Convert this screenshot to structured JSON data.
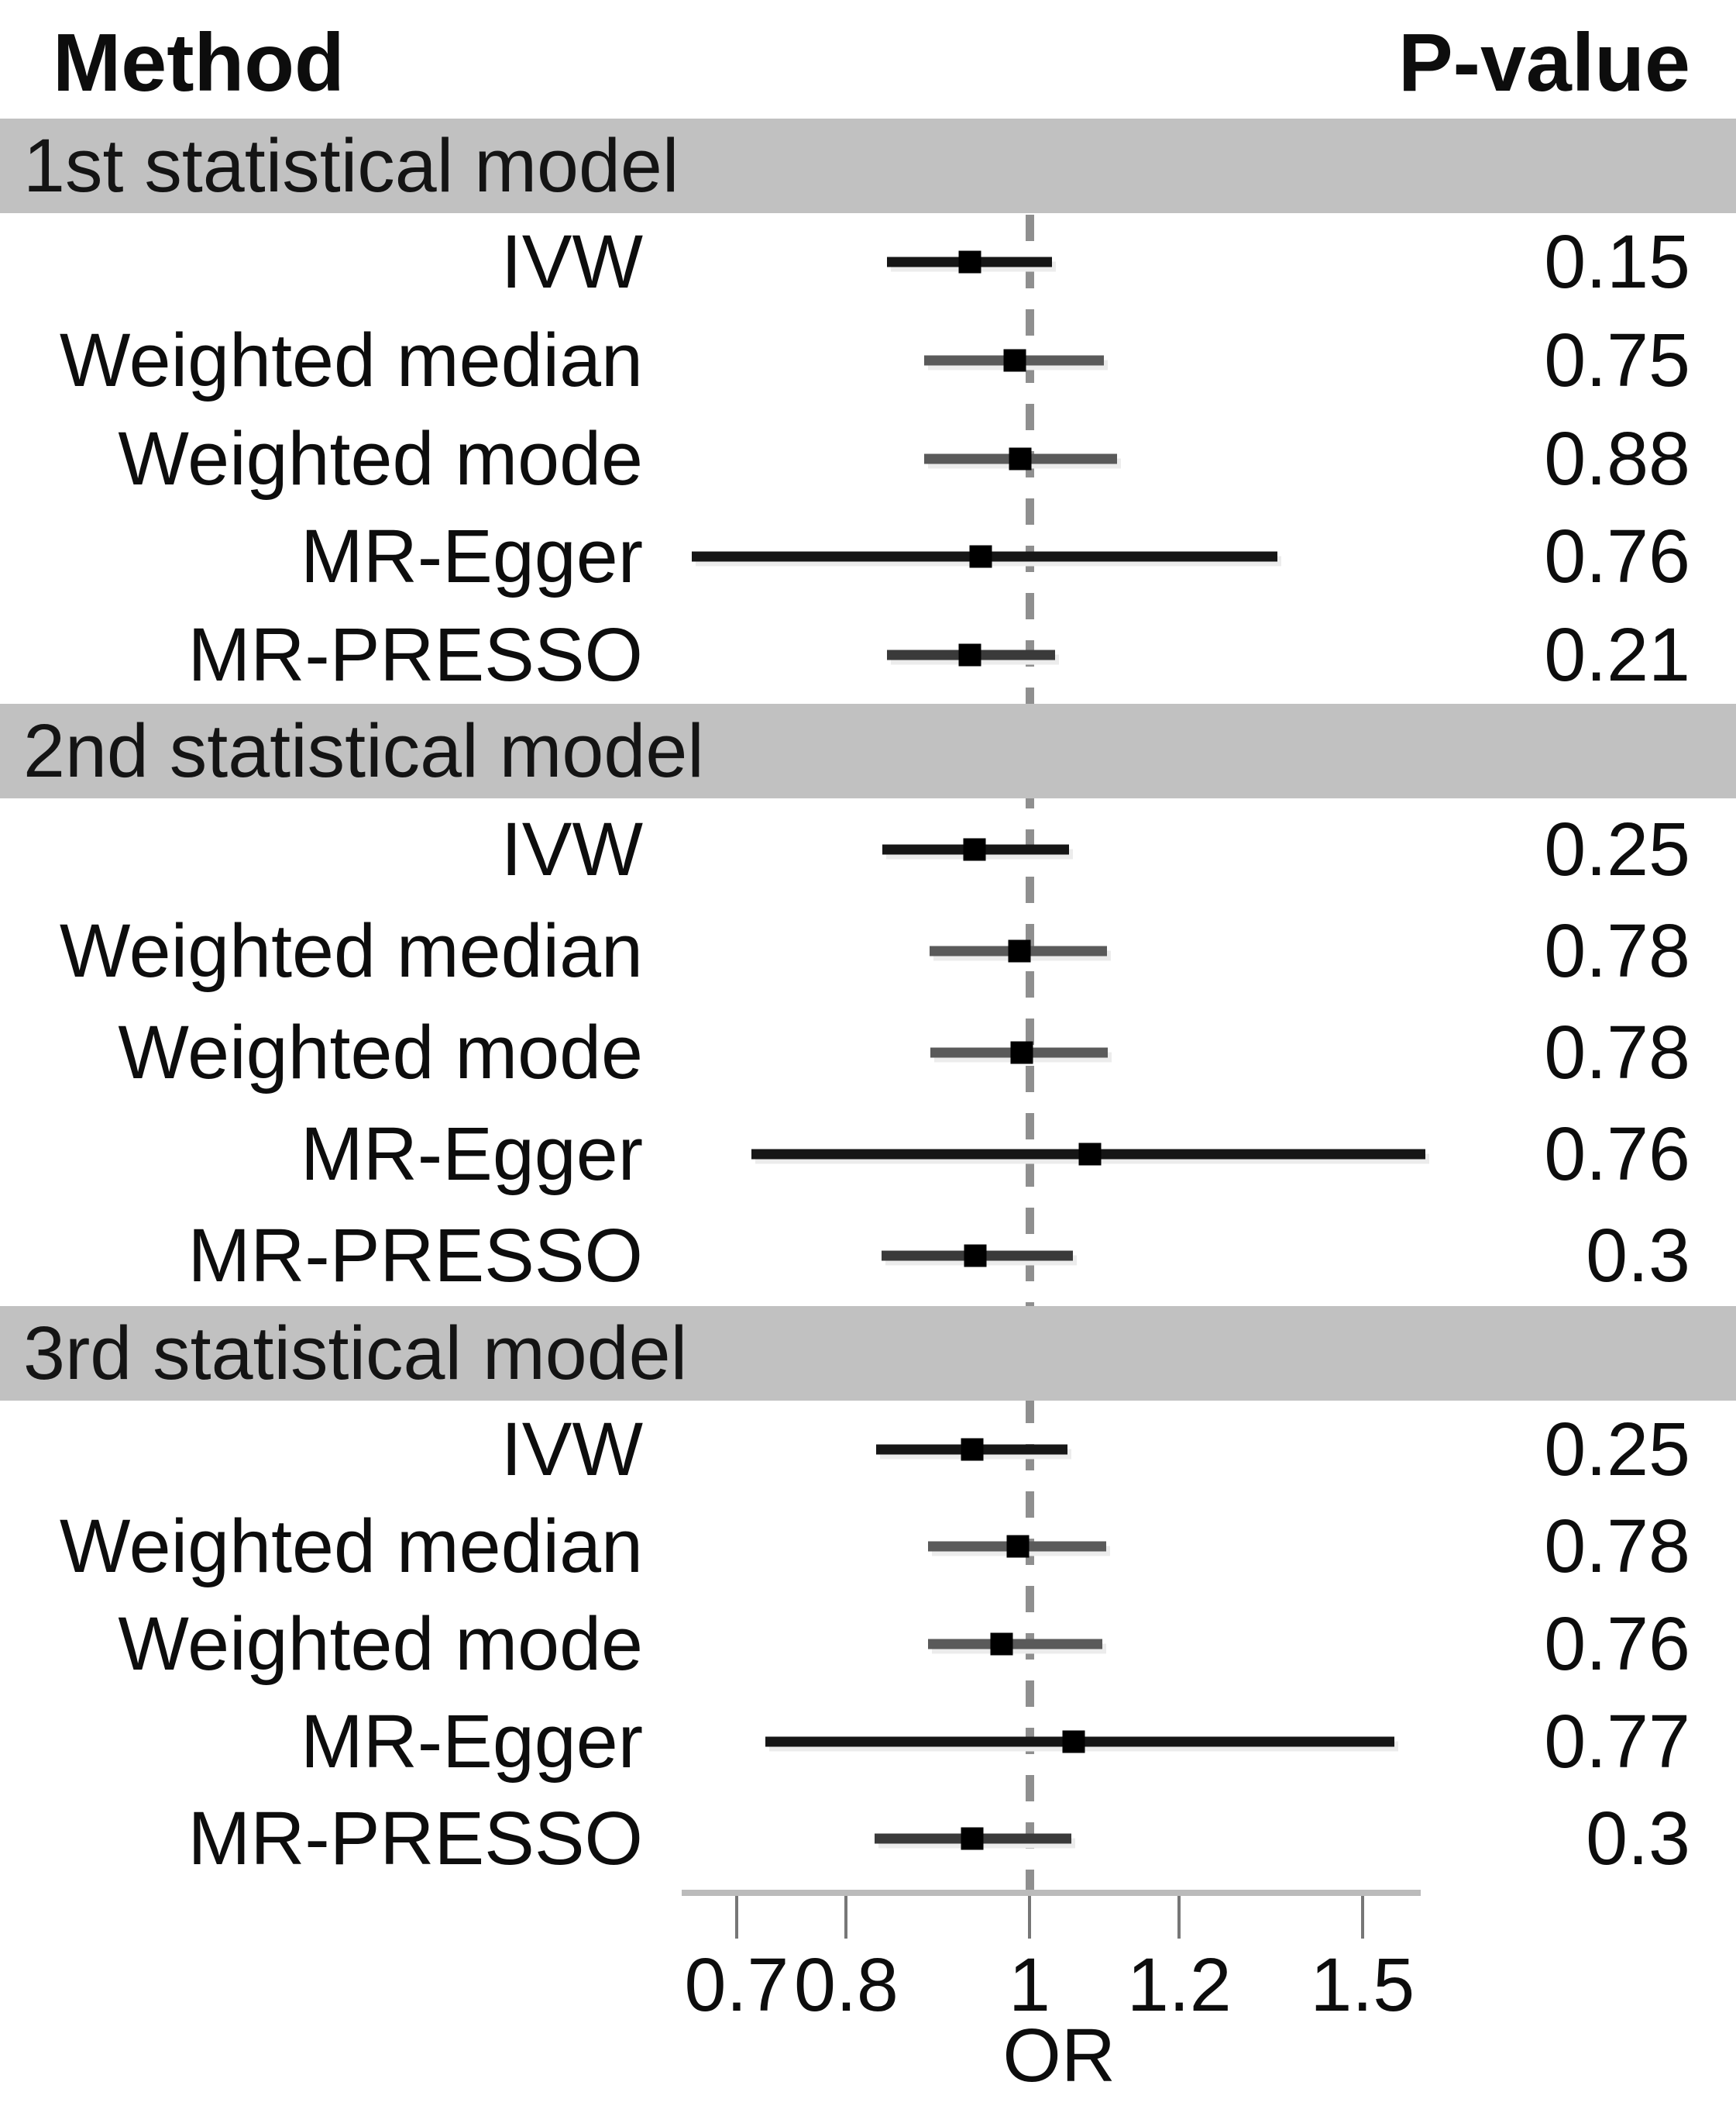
{
  "header": {
    "method_label": "Method",
    "pvalue_label": "P-value"
  },
  "axis": {
    "title": "OR",
    "scale": "log",
    "tick_labels": [
      "0.7",
      "0.8",
      "1",
      "1.2",
      "1.5"
    ],
    "tick_values": [
      0.7,
      0.8,
      1.0,
      1.2,
      1.5
    ],
    "line_start_or": 0.655,
    "line_end_or": 1.61,
    "reference_or": 1.0
  },
  "colors": {
    "band_bg": "#c1c1c1",
    "bar_dark": "#161616",
    "bar_gray": "#5a5a5a",
    "bar_mid": "#3a3a3a",
    "bar_shadow": "#ececec",
    "point": "#000000",
    "dash": "#8f8f8f",
    "axis_line": "#bbbbbb",
    "tick": "#777777",
    "text": "#0d0d0d"
  },
  "chart_data": {
    "type": "forest",
    "xlabel": "OR",
    "xscale": "log",
    "xticks": [
      0.7,
      0.8,
      1.0,
      1.2,
      1.5
    ],
    "reference_line": 1.0,
    "legend_position": "none",
    "grid": false,
    "sections": [
      {
        "title": "1st statistical model",
        "rows": [
          {
            "method": "IVW",
            "or": 0.93,
            "ci_low": 0.841,
            "ci_high": 1.028,
            "p_value": "0.15",
            "bar_style": "dark"
          },
          {
            "method": "Weighted median",
            "or": 0.982,
            "ci_low": 0.88,
            "ci_high": 1.095,
            "p_value": "0.75",
            "bar_style": "gray"
          },
          {
            "method": "Weighted mode",
            "or": 0.989,
            "ci_low": 0.88,
            "ci_high": 1.112,
            "p_value": "0.88",
            "bar_style": "gray"
          },
          {
            "method": "MR-Egger",
            "or": 0.942,
            "ci_low": 0.663,
            "ci_high": 1.352,
            "p_value": "0.76",
            "bar_style": "dark"
          },
          {
            "method": "MR-PRESSO",
            "or": 0.93,
            "ci_low": 0.841,
            "ci_high": 1.032,
            "p_value": "0.21",
            "bar_style": "mid"
          }
        ]
      },
      {
        "title": "2nd statistical model",
        "rows": [
          {
            "method": "IVW",
            "or": 0.935,
            "ci_low": 0.836,
            "ci_high": 1.049,
            "p_value": "0.25",
            "bar_style": "dark"
          },
          {
            "method": "Weighted median",
            "or": 0.988,
            "ci_low": 0.885,
            "ci_high": 1.099,
            "p_value": "0.78",
            "bar_style": "gray"
          },
          {
            "method": "Weighted mode",
            "or": 0.991,
            "ci_low": 0.886,
            "ci_high": 1.1,
            "p_value": "0.78",
            "bar_style": "gray"
          },
          {
            "method": "MR-Egger",
            "or": 1.076,
            "ci_low": 0.713,
            "ci_high": 1.62,
            "p_value": "0.76",
            "bar_style": "dark"
          },
          {
            "method": "MR-PRESSO",
            "or": 0.936,
            "ci_low": 0.835,
            "ci_high": 1.054,
            "p_value": "0.3",
            "bar_style": "mid"
          }
        ]
      },
      {
        "title": "3rd statistical model",
        "rows": [
          {
            "method": "IVW",
            "or": 0.933,
            "ci_low": 0.83,
            "ci_high": 1.047,
            "p_value": "0.25",
            "bar_style": "dark"
          },
          {
            "method": "Weighted median",
            "or": 0.986,
            "ci_low": 0.884,
            "ci_high": 1.098,
            "p_value": "0.78",
            "bar_style": "gray"
          },
          {
            "method": "Weighted mode",
            "or": 0.967,
            "ci_low": 0.884,
            "ci_high": 1.093,
            "p_value": "0.76",
            "bar_style": "gray"
          },
          {
            "method": "MR-Egger",
            "or": 1.055,
            "ci_low": 0.725,
            "ci_high": 1.56,
            "p_value": "0.77",
            "bar_style": "dark"
          },
          {
            "method": "MR-PRESSO",
            "or": 0.933,
            "ci_low": 0.828,
            "ci_high": 1.052,
            "p_value": "0.3",
            "bar_style": "mid"
          }
        ]
      }
    ]
  }
}
